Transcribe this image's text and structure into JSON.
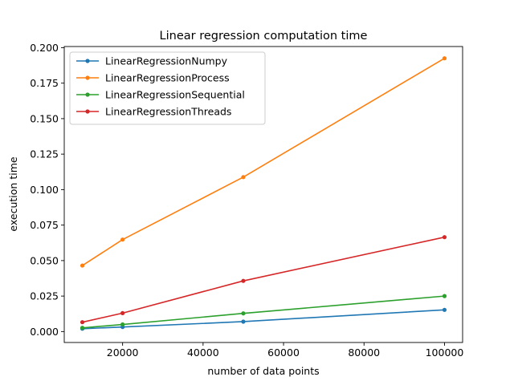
{
  "chart_data": {
    "type": "line",
    "title": "Linear regression computation time",
    "xlabel": "number of data points",
    "ylabel": "execution time",
    "xlim": [
      5500,
      104500
    ],
    "ylim": [
      -0.0077,
      0.2008
    ],
    "xticks": [
      20000,
      40000,
      60000,
      80000,
      100000
    ],
    "xtick_labels": [
      "20000",
      "40000",
      "60000",
      "80000",
      "100000"
    ],
    "yticks": [
      0.0,
      0.025,
      0.05,
      0.075,
      0.1,
      0.125,
      0.15,
      0.175,
      0.2
    ],
    "ytick_labels": [
      "0.000",
      "0.025",
      "0.050",
      "0.075",
      "0.100",
      "0.125",
      "0.150",
      "0.175",
      "0.200"
    ],
    "grid": false,
    "legend_position": "top-left",
    "x": [
      10000,
      20000,
      50000,
      100000
    ],
    "series": [
      {
        "name": "LinearRegressionNumpy",
        "color": "#1f77b4",
        "values": [
          0.002,
          0.0032,
          0.007,
          0.0153
        ]
      },
      {
        "name": "LinearRegressionProcess",
        "color": "#ff7f0e",
        "values": [
          0.0465,
          0.0648,
          0.1088,
          0.1925
        ]
      },
      {
        "name": "LinearRegressionSequential",
        "color": "#2ca02c",
        "values": [
          0.0026,
          0.005,
          0.0128,
          0.025
        ]
      },
      {
        "name": "LinearRegressionThreads",
        "color": "#d62728",
        "values": [
          0.0066,
          0.013,
          0.0357,
          0.0665
        ]
      }
    ]
  }
}
